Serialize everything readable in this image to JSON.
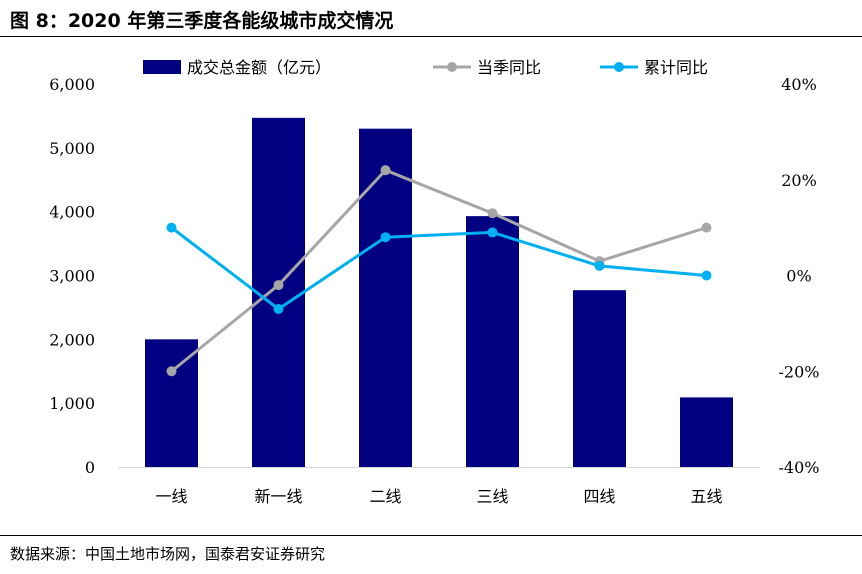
{
  "header": {
    "title": "图 8：2020 年第三季度各能级城市成交情况"
  },
  "footer": {
    "source": "数据来源：中国土地市场网，国泰君安证券研究"
  },
  "colors": {
    "bar": "#000080",
    "yoy_line": "#a6a6a6",
    "cum_line": "#00b0f0",
    "axis": "#d9d9d9"
  },
  "chart_data": {
    "type": "bar",
    "categories": [
      "一线",
      "新一线",
      "二线",
      "三线",
      "四线",
      "五线"
    ],
    "series": [
      {
        "name": "成交总金额（亿元）",
        "type": "bar",
        "axis": "left",
        "values": [
          2000,
          5470,
          5300,
          3930,
          2770,
          1090
        ]
      },
      {
        "name": "当季同比",
        "type": "line",
        "axis": "right",
        "values": [
          -20,
          -2,
          22,
          13,
          3,
          10
        ]
      },
      {
        "name": "累计同比",
        "type": "line",
        "axis": "right",
        "values": [
          10,
          -7,
          8,
          9,
          2,
          0
        ]
      }
    ],
    "y_left": {
      "ylim": [
        0,
        6000
      ],
      "ticks": [
        "0",
        "1,000",
        "2,000",
        "3,000",
        "4,000",
        "5,000",
        "6,000"
      ]
    },
    "y_right": {
      "ylim": [
        -40,
        40
      ],
      "ticks": [
        "-40%",
        "-20%",
        "0%",
        "20%",
        "40%"
      ]
    },
    "legend": "top",
    "grid": false
  }
}
